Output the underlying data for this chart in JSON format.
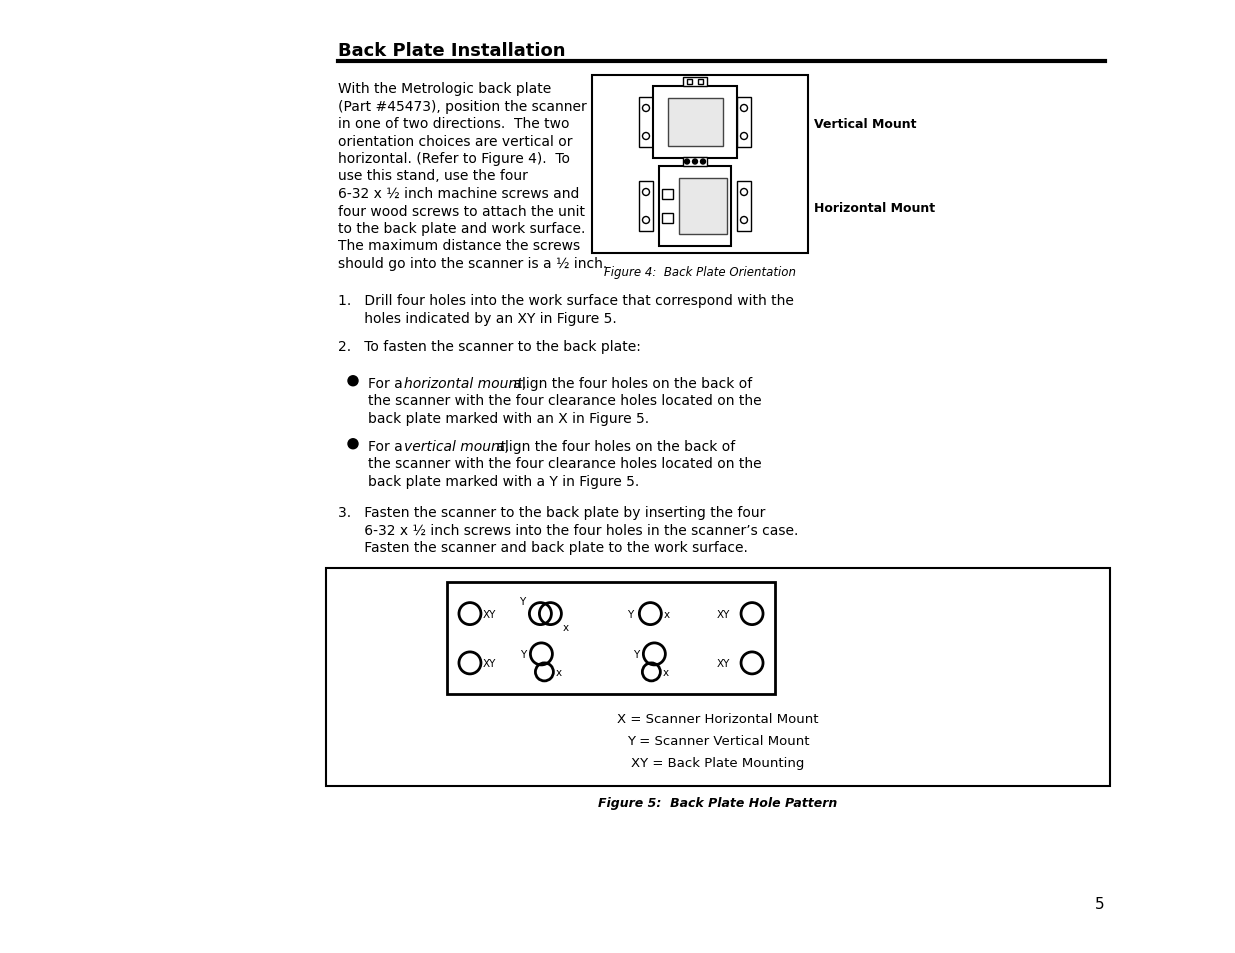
{
  "title": "Back Plate Installation",
  "bg_color": "#ffffff",
  "text_color": "#000000",
  "page_number": "5",
  "body_text": [
    "With the Metrologic back plate",
    "(Part #45473), position the scanner",
    "in one of two directions.  The two",
    "orientation choices are vertical or",
    "horizontal. (Refer to Figure 4).  To",
    "use this stand, use the four",
    "6-32 x ½ inch machine screws and",
    "four wood screws to attach the unit",
    "to the back plate and work surface.",
    "The maximum distance the screws",
    "should go into the scanner is a ½ inch."
  ],
  "item1_lines": [
    "1.   Drill four holes into the work surface that correspond with the",
    "      holes indicated by an XY in Figure 5."
  ],
  "item2_line": "2.   To fasten the scanner to the back plate:",
  "bullet1_prefix": "For a ",
  "bullet1_italic": "horizontal mount,",
  "bullet1_suffix": " align the four holes on the back of",
  "bullet1_line2": "the scanner with the four clearance holes located on the",
  "bullet1_line3": "back plate marked with an X in Figure 5.",
  "bullet2_prefix": "For a ",
  "bullet2_italic": "vertical mount,",
  "bullet2_suffix": " align the four holes on the back of",
  "bullet2_line2": "the scanner with the four clearance holes located on the",
  "bullet2_line3": "back plate marked with a Y in Figure 5.",
  "item3_lines": [
    "3.   Fasten the scanner to the back plate by inserting the four",
    "      6-32 x ½ inch screws into the four holes in the scanner’s case.",
    "      Fasten the scanner and back plate to the work surface."
  ],
  "fig4_caption": "Figure 4:  Back Plate Orientation",
  "fig5_caption": "Figure 5:  Back Plate Hole Pattern",
  "vertical_mount_label": "Vertical Mount",
  "horizontal_mount_label": "Horizontal Mount",
  "legend_x": "X = Scanner Horizontal Mount",
  "legend_y": "Y = Scanner Vertical Mount",
  "legend_xy": "XY = Back Plate Mounting"
}
